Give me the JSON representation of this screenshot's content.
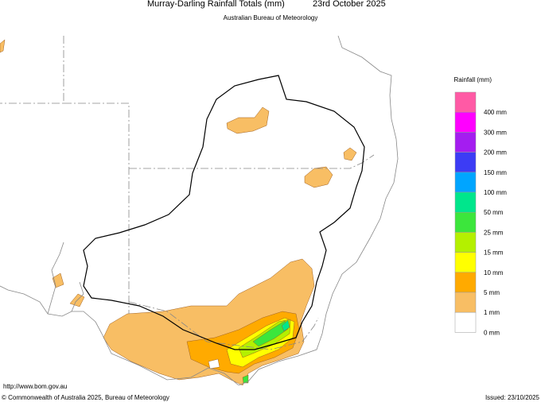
{
  "header": {
    "title": "Murray-Darling Rainfall Totals (mm)",
    "date": "23rd October 2025",
    "subtitle": "Australian Bureau of Meteorology"
  },
  "legend": {
    "title": "Rainfall (mm)",
    "boxes": [
      "#ff5aa5",
      "#ff00ff",
      "#a41df0",
      "#3c3cf5",
      "#00a5ff",
      "#00e68c",
      "#3ce63c",
      "#b4f000",
      "#ffff00",
      "#ffaa00",
      "#f8be64",
      "#ffffff"
    ],
    "labels": [
      "400 mm",
      "300 mm",
      "200 mm",
      "150 mm",
      "100 mm",
      "50 mm",
      "25 mm",
      "15 mm",
      "10 mm",
      "5 mm",
      "1 mm",
      "0 mm"
    ]
  },
  "footer": {
    "url": "http://www.bom.gov.au",
    "copyright": "© Commonwealth of Australia 2025, Bureau of Meteorology",
    "issued": "Issued: 23/10/2025"
  }
}
